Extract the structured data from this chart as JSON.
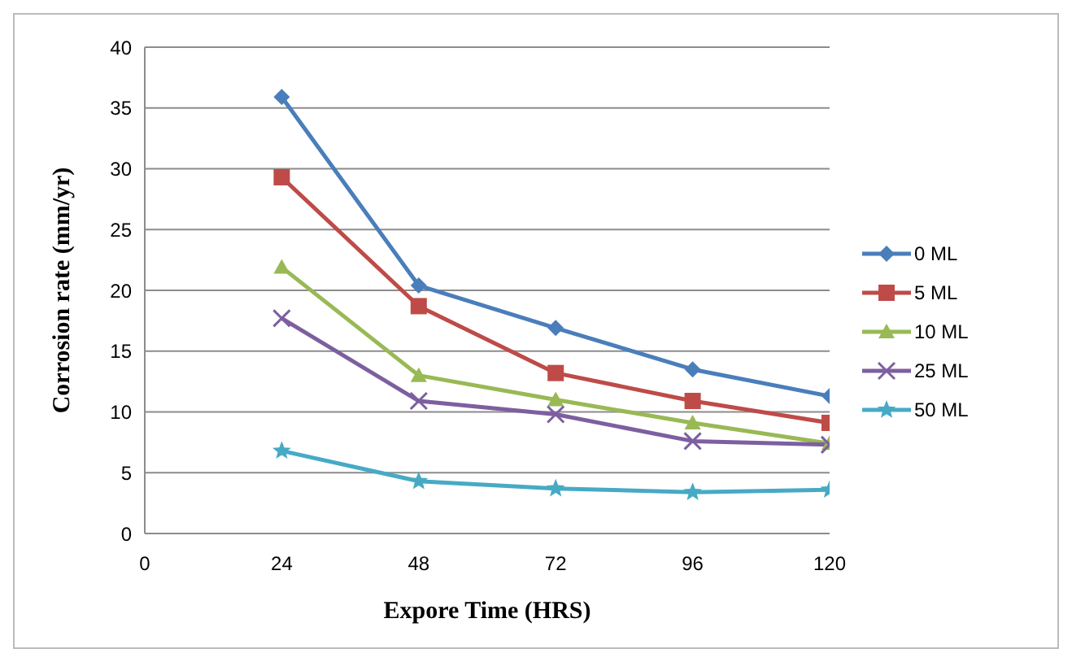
{
  "chart_data": {
    "type": "line",
    "xlabel": "Expore Time (HRS)",
    "ylabel": "Corrosion rate (mm/yr)",
    "x": [
      24,
      48,
      72,
      96,
      120
    ],
    "series": [
      {
        "name": "0 ML",
        "color": "#4a7ebb",
        "marker": "diamond",
        "values": [
          35.9,
          20.4,
          16.9,
          13.5,
          11.3
        ]
      },
      {
        "name": "5 ML",
        "color": "#be4b48",
        "marker": "square",
        "values": [
          29.3,
          18.7,
          13.2,
          10.9,
          9.1
        ]
      },
      {
        "name": "10 ML",
        "color": "#98b954",
        "marker": "triangle",
        "values": [
          21.9,
          13.0,
          11.0,
          9.1,
          7.4
        ]
      },
      {
        "name": "25 ML",
        "color": "#7d5fa0",
        "marker": "cross",
        "values": [
          17.7,
          10.9,
          9.8,
          7.6,
          7.3
        ]
      },
      {
        "name": "50 ML",
        "color": "#46aac5",
        "marker": "star",
        "values": [
          6.8,
          4.3,
          3.7,
          3.4,
          3.6
        ]
      }
    ],
    "xlim": [
      0,
      120
    ],
    "xticks": [
      0,
      24,
      48,
      72,
      96,
      120
    ],
    "ylim": [
      0,
      40
    ],
    "yticks": [
      0,
      5,
      10,
      15,
      20,
      25,
      30,
      35,
      40
    ],
    "grid": "y",
    "legend": "right"
  }
}
